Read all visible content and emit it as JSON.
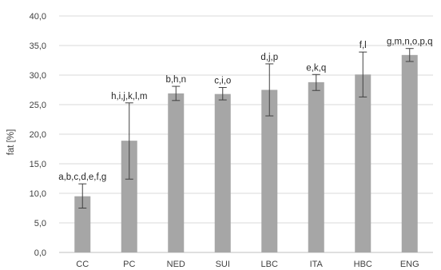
{
  "chart_data": {
    "type": "bar",
    "ylabel": "fat [%]",
    "ylim": [
      0,
      40
    ],
    "ytick_step": 5,
    "yticks": [
      "0,0",
      "5,0",
      "10,0",
      "15,0",
      "20,0",
      "25,0",
      "30,0",
      "35,0",
      "40,0"
    ],
    "grid": true,
    "categories": [
      "CC",
      "PC",
      "NED",
      "SUI",
      "LBC",
      "ITA",
      "HBC",
      "ENG"
    ],
    "values": [
      9.5,
      18.9,
      26.9,
      26.8,
      27.5,
      28.8,
      30.1,
      33.4
    ],
    "error_low": [
      7.5,
      12.4,
      25.7,
      25.8,
      23.1,
      27.4,
      26.3,
      32.3
    ],
    "error_high": [
      11.6,
      25.3,
      28.1,
      27.9,
      31.9,
      30.1,
      33.9,
      34.5
    ],
    "annotations": [
      "a,b,c,d,e,f,g",
      "h,i,j,k,l,m",
      "b,h,n",
      "c,i,o",
      "d,j,p",
      "e,k,q",
      "f,l",
      "g,m,n,o,p,q"
    ],
    "colors": {
      "bar": "#a6a6a6",
      "grid": "#d9d9d9",
      "axis": "#bfbfbf",
      "error": "#404040"
    }
  }
}
